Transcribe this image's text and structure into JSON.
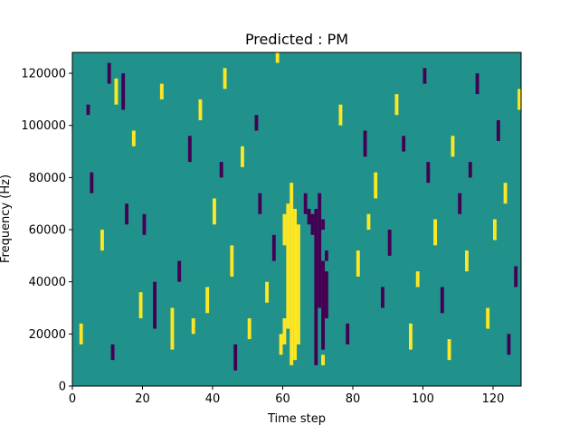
{
  "chart_data": {
    "type": "heatmap",
    "title": "Predicted : PM",
    "xlabel": "Time step",
    "ylabel": "Frequency (Hz)",
    "xlim": [
      0,
      128
    ],
    "ylim": [
      0,
      128000
    ],
    "x_ticks": [
      0,
      20,
      40,
      60,
      80,
      100,
      120
    ],
    "y_ticks": [
      0,
      20000,
      40000,
      60000,
      80000,
      100000,
      120000
    ],
    "x_tick_labels": [
      "0",
      "20",
      "40",
      "60",
      "80",
      "100",
      "120"
    ],
    "y_tick_labels": [
      "0",
      "20000",
      "40000",
      "60000",
      "80000",
      "100000",
      "120000"
    ],
    "n_time_steps": 128,
    "n_freq_bins": 64,
    "freq_bin_hz": 2000,
    "background_value": 0,
    "colormap": {
      "-1": "#440154",
      "0": "#21918c",
      "1": "#fde725"
    },
    "grid": false,
    "cells": [
      {
        "t": 61,
        "f0": 11,
        "f1": 34,
        "v": 1
      },
      {
        "t": 62,
        "f0": 4,
        "f1": 38,
        "v": 1
      },
      {
        "t": 63,
        "f0": 5,
        "f1": 33,
        "v": 1
      },
      {
        "t": 64,
        "f0": 8,
        "f1": 30,
        "v": 1
      },
      {
        "t": 60,
        "f0": 27,
        "f1": 32,
        "v": 1
      },
      {
        "t": 59,
        "f0": 6,
        "f1": 9,
        "v": 1
      },
      {
        "t": 60,
        "f0": 8,
        "f1": 12,
        "v": 1
      },
      {
        "t": 58,
        "f0": 62,
        "f1": 63,
        "v": 1
      },
      {
        "t": 69,
        "f0": 4,
        "f1": 33,
        "v": -1
      },
      {
        "t": 70,
        "f0": 15,
        "f1": 36,
        "v": -1
      },
      {
        "t": 71,
        "f0": 7,
        "f1": 23,
        "v": -1
      },
      {
        "t": 72,
        "f0": 13,
        "f1": 21,
        "v": -1
      },
      {
        "t": 66,
        "f0": 33,
        "f1": 36,
        "v": -1
      },
      {
        "t": 67,
        "f0": 31,
        "f1": 33,
        "v": -1
      },
      {
        "t": 68,
        "f0": 29,
        "f1": 32,
        "v": -1
      },
      {
        "t": 71,
        "f0": 30,
        "f1": 31,
        "v": -1
      },
      {
        "t": 71,
        "f0": 4,
        "f1": 5,
        "v": 1
      },
      {
        "t": 72,
        "f0": 24,
        "f1": 25,
        "v": -1
      },
      {
        "t": 4,
        "f0": 52,
        "f1": 53,
        "v": -1
      },
      {
        "t": 10,
        "f0": 58,
        "f1": 61,
        "v": -1
      },
      {
        "t": 12,
        "f0": 54,
        "f1": 58,
        "v": 1
      },
      {
        "t": 14,
        "f0": 53,
        "f1": 59,
        "v": -1
      },
      {
        "t": 15,
        "f0": 31,
        "f1": 34,
        "v": -1
      },
      {
        "t": 19,
        "f0": 13,
        "f1": 17,
        "v": 1
      },
      {
        "t": 23,
        "f0": 11,
        "f1": 19,
        "v": -1
      },
      {
        "t": 28,
        "f0": 7,
        "f1": 14,
        "v": 1
      },
      {
        "t": 33,
        "f0": 43,
        "f1": 47,
        "v": -1
      },
      {
        "t": 36,
        "f0": 51,
        "f1": 54,
        "v": 1
      },
      {
        "t": 38,
        "f0": 14,
        "f1": 18,
        "v": 1
      },
      {
        "t": 40,
        "f0": 31,
        "f1": 35,
        "v": 1
      },
      {
        "t": 42,
        "f0": 40,
        "f1": 42,
        "v": -1
      },
      {
        "t": 45,
        "f0": 21,
        "f1": 26,
        "v": 1
      },
      {
        "t": 46,
        "f0": 3,
        "f1": 7,
        "v": -1
      },
      {
        "t": 48,
        "f0": 42,
        "f1": 45,
        "v": 1
      },
      {
        "t": 50,
        "f0": 9,
        "f1": 12,
        "v": 1
      },
      {
        "t": 53,
        "f0": 33,
        "f1": 36,
        "v": -1
      },
      {
        "t": 55,
        "f0": 16,
        "f1": 19,
        "v": 1
      },
      {
        "t": 57,
        "f0": 24,
        "f1": 28,
        "v": -1
      },
      {
        "t": 81,
        "f0": 21,
        "f1": 25,
        "v": 1
      },
      {
        "t": 83,
        "f0": 44,
        "f1": 48,
        "v": -1
      },
      {
        "t": 86,
        "f0": 36,
        "f1": 40,
        "v": 1
      },
      {
        "t": 88,
        "f0": 15,
        "f1": 18,
        "v": -1
      },
      {
        "t": 90,
        "f0": 25,
        "f1": 29,
        "v": -1
      },
      {
        "t": 92,
        "f0": 52,
        "f1": 55,
        "v": 1
      },
      {
        "t": 96,
        "f0": 7,
        "f1": 11,
        "v": 1
      },
      {
        "t": 101,
        "f0": 39,
        "f1": 42,
        "v": -1
      },
      {
        "t": 103,
        "f0": 27,
        "f1": 31,
        "v": 1
      },
      {
        "t": 105,
        "f0": 14,
        "f1": 18,
        "v": -1
      },
      {
        "t": 108,
        "f0": 44,
        "f1": 47,
        "v": 1
      },
      {
        "t": 110,
        "f0": 33,
        "f1": 36,
        "v": -1
      },
      {
        "t": 112,
        "f0": 22,
        "f1": 25,
        "v": 1
      },
      {
        "t": 115,
        "f0": 56,
        "f1": 59,
        "v": -1
      },
      {
        "t": 118,
        "f0": 11,
        "f1": 14,
        "v": 1
      },
      {
        "t": 121,
        "f0": 47,
        "f1": 50,
        "v": -1
      },
      {
        "t": 123,
        "f0": 35,
        "f1": 38,
        "v": 1
      },
      {
        "t": 126,
        "f0": 19,
        "f1": 22,
        "v": -1
      },
      {
        "t": 2,
        "f0": 8,
        "f1": 11,
        "v": 1
      },
      {
        "t": 5,
        "f0": 37,
        "f1": 40,
        "v": -1
      },
      {
        "t": 8,
        "f0": 26,
        "f1": 29,
        "v": 1
      },
      {
        "t": 11,
        "f0": 5,
        "f1": 7,
        "v": -1
      },
      {
        "t": 17,
        "f0": 46,
        "f1": 48,
        "v": 1
      },
      {
        "t": 20,
        "f0": 29,
        "f1": 32,
        "v": -1
      },
      {
        "t": 25,
        "f0": 55,
        "f1": 57,
        "v": 1
      },
      {
        "t": 30,
        "f0": 20,
        "f1": 23,
        "v": -1
      },
      {
        "t": 34,
        "f0": 10,
        "f1": 12,
        "v": 1
      },
      {
        "t": 43,
        "f0": 57,
        "f1": 60,
        "v": 1
      },
      {
        "t": 52,
        "f0": 49,
        "f1": 51,
        "v": -1
      },
      {
        "t": 76,
        "f0": 50,
        "f1": 53,
        "v": 1
      },
      {
        "t": 78,
        "f0": 8,
        "f1": 11,
        "v": -1
      },
      {
        "t": 84,
        "f0": 30,
        "f1": 32,
        "v": 1
      },
      {
        "t": 94,
        "f0": 45,
        "f1": 47,
        "v": -1
      },
      {
        "t": 98,
        "f0": 19,
        "f1": 21,
        "v": 1
      },
      {
        "t": 100,
        "f0": 58,
        "f1": 60,
        "v": -1
      },
      {
        "t": 107,
        "f0": 5,
        "f1": 8,
        "v": 1
      },
      {
        "t": 113,
        "f0": 40,
        "f1": 42,
        "v": -1
      },
      {
        "t": 120,
        "f0": 28,
        "f1": 31,
        "v": 1
      },
      {
        "t": 124,
        "f0": 6,
        "f1": 9,
        "v": -1
      },
      {
        "t": 127,
        "f0": 53,
        "f1": 56,
        "v": 1
      }
    ]
  }
}
